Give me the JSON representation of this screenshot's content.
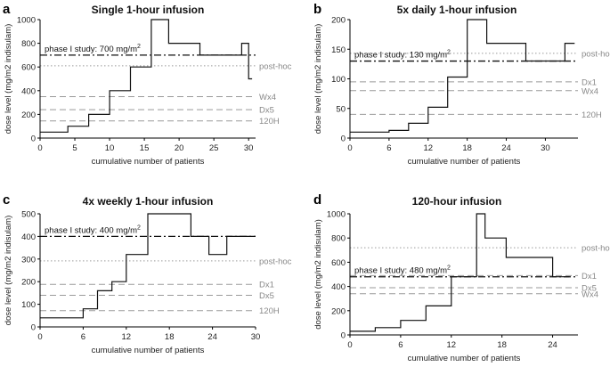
{
  "chart_data": [
    {
      "letter": "a",
      "type": "line",
      "title": "Single 1-hour infusion",
      "xlabel": "cumulative number of patients",
      "ylabel": "dose level (mg/m2 indisulam)",
      "xlim": [
        0,
        31
      ],
      "ylim": [
        0,
        1000
      ],
      "xticks": [
        0,
        5,
        10,
        15,
        20,
        25,
        30
      ],
      "yticks": [
        0,
        200,
        400,
        600,
        800,
        1000
      ],
      "step": {
        "x": [
          0,
          4,
          4,
          7,
          7,
          10,
          10,
          13,
          13,
          16,
          16,
          18.5,
          18.5,
          23,
          23,
          29,
          29,
          30,
          30,
          30.5
        ],
        "y": [
          50,
          50,
          100,
          100,
          200,
          200,
          400,
          400,
          600,
          600,
          1000,
          1000,
          800,
          800,
          700,
          700,
          800,
          800,
          500,
          500
        ]
      },
      "phase_line": {
        "y": 700,
        "text": "phase I study: 700 mg/m",
        "sup": "2"
      },
      "refs": [
        {
          "name": "post-hoc",
          "y": 610,
          "style": "dotted"
        },
        {
          "name": "Wx4",
          "y": 350,
          "style": "dashed"
        },
        {
          "name": "Dx5",
          "y": 240,
          "style": "dashed"
        },
        {
          "name": "120H",
          "y": 145,
          "style": "dashed"
        }
      ]
    },
    {
      "letter": "b",
      "type": "line",
      "title": "5x daily 1-hour infusion",
      "xlabel": "cumulative number of patients",
      "ylabel": "dose level (mg/m2 indisulam)",
      "xlim": [
        0,
        35
      ],
      "ylim": [
        0,
        200
      ],
      "xticks": [
        0,
        6,
        12,
        18,
        24,
        30
      ],
      "yticks": [
        0,
        50,
        100,
        150,
        200
      ],
      "step": {
        "x": [
          0,
          6,
          6,
          9,
          9,
          12,
          12,
          15,
          15,
          18,
          18,
          21,
          21,
          27,
          27,
          33,
          33,
          34.5
        ],
        "y": [
          10,
          10,
          13,
          13,
          25,
          25,
          52,
          52,
          103,
          103,
          200,
          200,
          160,
          160,
          130,
          130,
          160,
          160
        ]
      },
      "phase_line": {
        "y": 130,
        "text": "phase I study: 130 mg/m",
        "sup": "2"
      },
      "refs": [
        {
          "name": "post-hoc",
          "y": 143,
          "style": "dotted"
        },
        {
          "name": "Dx1",
          "y": 95,
          "style": "dashed"
        },
        {
          "name": "Wx4",
          "y": 80,
          "style": "dashed"
        },
        {
          "name": "120H",
          "y": 40,
          "style": "dashed"
        }
      ]
    },
    {
      "letter": "c",
      "type": "line",
      "title": "4x weekly 1-hour infusion",
      "xlabel": "cumulative number of patients",
      "ylabel": "dose level (mg/m2 indisulam)",
      "xlim": [
        0,
        30
      ],
      "ylim": [
        0,
        500
      ],
      "xticks": [
        0,
        6,
        12,
        18,
        24,
        30
      ],
      "yticks": [
        0,
        100,
        200,
        300,
        400,
        500
      ],
      "step": {
        "x": [
          0,
          6,
          6,
          8,
          8,
          10,
          10,
          12,
          12,
          15,
          15,
          21,
          21,
          23.5,
          23.5,
          26,
          26,
          30
        ],
        "y": [
          40,
          40,
          80,
          80,
          160,
          160,
          200,
          200,
          320,
          320,
          500,
          500,
          400,
          400,
          320,
          320,
          400,
          400
        ]
      },
      "phase_line": {
        "y": 400,
        "text": "phase I study: 400 mg/m",
        "sup": "2"
      },
      "refs": [
        {
          "name": "post-hoc",
          "y": 292,
          "style": "dotted"
        },
        {
          "name": "Dx1",
          "y": 188,
          "style": "dashed"
        },
        {
          "name": "Dx5",
          "y": 140,
          "style": "dashed"
        },
        {
          "name": "120H",
          "y": 72,
          "style": "dashed"
        }
      ]
    },
    {
      "letter": "d",
      "type": "line",
      "title": "120-hour infusion",
      "xlabel": "cumulative number of patients",
      "ylabel": "dose level (mg/m2 indisulam)",
      "xlim": [
        0,
        27
      ],
      "ylim": [
        0,
        1000
      ],
      "xticks": [
        0,
        6,
        12,
        18,
        24
      ],
      "yticks": [
        0,
        200,
        400,
        600,
        800,
        1000
      ],
      "step": {
        "x": [
          0,
          3,
          3,
          6,
          6,
          9,
          9,
          12,
          12,
          15,
          15,
          16,
          16,
          18.5,
          18.5,
          24,
          24,
          26
        ],
        "y": [
          30,
          30,
          60,
          60,
          120,
          120,
          240,
          240,
          480,
          480,
          1000,
          1000,
          800,
          800,
          640,
          640,
          480,
          480
        ]
      },
      "phase_line": {
        "y": 480,
        "text": "phase I study: 480 mg/m",
        "sup": "2"
      },
      "refs": [
        {
          "name": "post-hoc",
          "y": 720,
          "style": "dotted"
        },
        {
          "name": "Dx1",
          "y": 490,
          "style": "dashed"
        },
        {
          "name": "Dx5",
          "y": 390,
          "style": "dashed"
        },
        {
          "name": "Wx4",
          "y": 340,
          "style": "dashed"
        }
      ]
    }
  ]
}
